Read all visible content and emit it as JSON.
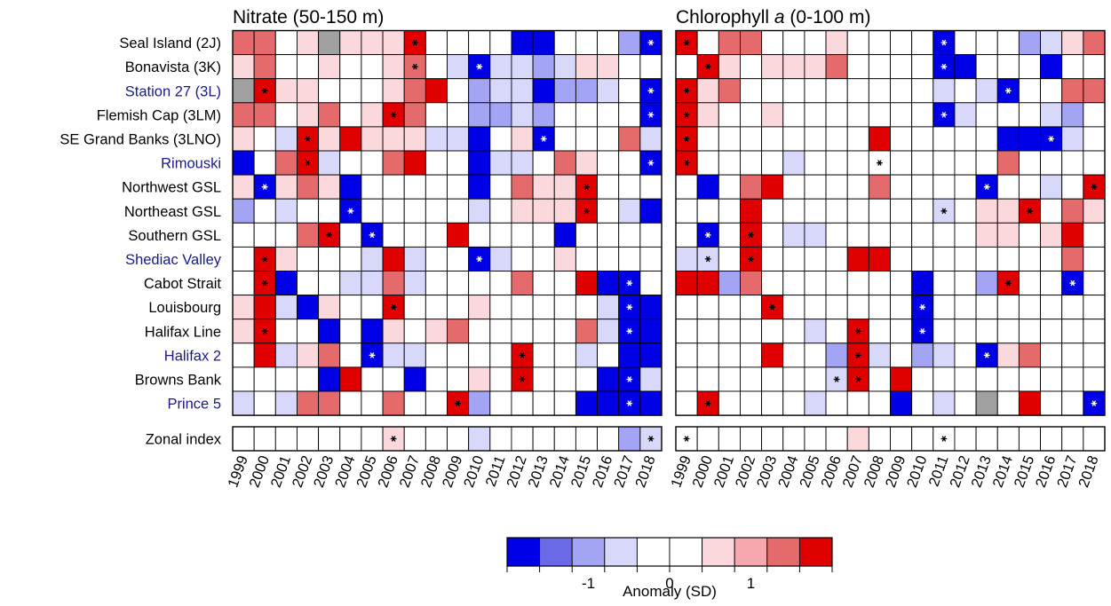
{
  "chart_data": {
    "type": "heatmap",
    "legend": {
      "title": "Anomaly (SD)",
      "tick_labels": [
        "-1",
        "0",
        "1"
      ],
      "tick_values": [
        -1,
        0,
        1
      ],
      "color_bins": [
        "#0000e6",
        "#6a6ae6",
        "#a4a4f5",
        "#d8d8fb",
        "#ffffff",
        "#ffffff",
        "#fbd8dc",
        "#f6a8ae",
        "#e46a6c",
        "#e00000"
      ],
      "range": [
        -2,
        2
      ],
      "missing_color": "#a0a0a0"
    },
    "years": [
      "1999",
      "2000",
      "2001",
      "2002",
      "2003",
      "2004",
      "2005",
      "2006",
      "2007",
      "2008",
      "2009",
      "2010",
      "2011",
      "2012",
      "2013",
      "2014",
      "2015",
      "2016",
      "2017",
      "2018"
    ],
    "rows": [
      {
        "label": "Seal Island (2J)",
        "highlight": false
      },
      {
        "label": "Bonavista (3K)",
        "highlight": false
      },
      {
        "label": "Station 27 (3L)",
        "highlight": true
      },
      {
        "label": "Flemish Cap (3LM)",
        "highlight": false
      },
      {
        "label": "SE Grand Banks (3LNO)",
        "highlight": false
      },
      {
        "label": "Rimouski",
        "highlight": true
      },
      {
        "label": "Northwest GSL",
        "highlight": false
      },
      {
        "label": "Northeast GSL",
        "highlight": false
      },
      {
        "label": "Southern GSL",
        "highlight": false
      },
      {
        "label": "Shediac Valley",
        "highlight": true
      },
      {
        "label": "Cabot Strait",
        "highlight": false
      },
      {
        "label": "Louisbourg",
        "highlight": false
      },
      {
        "label": "Halifax Line",
        "highlight": false
      },
      {
        "label": "Halifax 2",
        "highlight": true
      },
      {
        "label": "Browns Bank",
        "highlight": false
      },
      {
        "label": "Prince 5",
        "highlight": true
      }
    ],
    "index_row": {
      "label": "Zonal index"
    },
    "panels": [
      {
        "title": "Nitrate (50-150 m)",
        "values": [
          [
            1.5,
            1.2,
            0.3,
            0.5,
            null,
            0.4,
            0.6,
            0.7,
            2.0,
            0,
            -0.3,
            0,
            0,
            -2.0,
            -2.0,
            -0.3,
            -0.2,
            0,
            -1.0,
            -2.0
          ],
          [
            0.7,
            1.2,
            -0.3,
            0.3,
            0.6,
            0.3,
            0.3,
            0.5,
            1.2,
            0,
            -0.5,
            -2.0,
            -0.6,
            -0.7,
            -1.0,
            -0.6,
            0.7,
            0.5,
            0,
            -0.3
          ],
          [
            null,
            2.0,
            0.7,
            0.6,
            0,
            0.2,
            0.3,
            0.4,
            1.3,
            2.0,
            0,
            -1.0,
            -0.6,
            -0.6,
            -2.0,
            -1.0,
            -1.0,
            -0.6,
            -0.3,
            -2.0
          ],
          [
            1.3,
            1.2,
            0.3,
            0.4,
            1.2,
            0,
            0.7,
            2.0,
            1.2,
            -0.3,
            -0.3,
            -1.0,
            -1.0,
            -0.6,
            -1.0,
            -0.3,
            -0.3,
            0.3,
            -0.3,
            -2.0
          ],
          [
            0.7,
            -0.3,
            -0.6,
            2.0,
            0.7,
            2.0,
            0.7,
            0.4,
            0.5,
            -0.5,
            -0.7,
            -2.0,
            0,
            0.6,
            -2.0,
            -0.3,
            -0.3,
            -0.3,
            1.2,
            -0.7
          ],
          [
            -2.0,
            -0.3,
            1.3,
            2.0,
            -0.6,
            0.3,
            0.3,
            1.2,
            2.0,
            0,
            0.3,
            -2.0,
            -0.7,
            -0.6,
            -0.3,
            1.2,
            0.6,
            0.3,
            -0.3,
            -2.0
          ],
          [
            0.5,
            -2.0,
            0.5,
            1.2,
            0.4,
            -2.0,
            0.3,
            0.3,
            0,
            0,
            0,
            -2.0,
            -0.3,
            1.2,
            0.6,
            0.7,
            2.0,
            0.3,
            0,
            -0.3
          ],
          [
            -1.0,
            0,
            -0.7,
            0,
            0.3,
            -2.0,
            0,
            0.3,
            0,
            0,
            0,
            -0.6,
            0,
            0.7,
            0.5,
            0.5,
            2.0,
            0.3,
            -0.7,
            -2.0
          ],
          [
            -0.3,
            -0.3,
            0,
            1.2,
            2.0,
            0.3,
            -2.0,
            0.3,
            -0.3,
            0,
            2.0,
            -0.3,
            0.3,
            0,
            0,
            -2.0,
            0,
            0,
            0,
            0
          ],
          [
            0,
            2.0,
            0.4,
            0.3,
            0,
            0,
            -0.6,
            2.0,
            -0.7,
            0,
            0,
            -2.0,
            -0.7,
            0,
            0,
            0.5,
            0,
            0,
            0,
            0
          ],
          [
            0,
            2.0,
            -2.0,
            -0.3,
            0,
            -0.7,
            -0.5,
            1.2,
            -0.6,
            0,
            0.3,
            -0.3,
            0.3,
            1.2,
            0,
            0.3,
            2.0,
            -2.0,
            -2.0,
            -0.3
          ],
          [
            0.7,
            2.0,
            -0.7,
            -2.0,
            0.5,
            -0.3,
            -0.3,
            2.0,
            -0.3,
            0,
            0.3,
            0.4,
            0,
            0,
            0,
            0,
            0,
            -0.6,
            -2.0,
            -2.0
          ],
          [
            0.6,
            2.0,
            0,
            0,
            -2.0,
            0,
            -2.0,
            0.5,
            0,
            0.6,
            1.2,
            -0.3,
            0,
            0,
            0,
            -0.3,
            1.2,
            -0.6,
            -2.0,
            -2.0
          ],
          [
            0,
            2.0,
            -0.7,
            0.5,
            1.2,
            -0.3,
            -2.0,
            -0.6,
            -0.6,
            -0.3,
            -0.3,
            -0.3,
            -0.3,
            2.0,
            -0.3,
            -0.3,
            -0.5,
            -0.3,
            -2.0,
            -2.0
          ],
          [
            -0.3,
            0,
            0,
            -0.3,
            -2.0,
            2.0,
            0,
            -0.3,
            -2.0,
            0,
            0.3,
            0.5,
            0,
            2.0,
            0,
            0,
            0,
            -2.0,
            -2.0,
            -0.7
          ],
          [
            -0.7,
            -0.3,
            -0.7,
            1.2,
            1.2,
            -0.3,
            0,
            1.2,
            -0.3,
            0,
            2.0,
            -1.0,
            -0.3,
            0,
            0,
            0,
            -2.0,
            -2.0,
            -2.0,
            -2.0
          ]
        ],
        "index_values": [
          0,
          0.3,
          0,
          0,
          0,
          0,
          -0.3,
          0.6,
          0,
          0,
          0,
          -0.6,
          0,
          0.3,
          -0.3,
          0,
          0,
          -0.3,
          -1.0,
          -0.6
        ],
        "significant": [
          [
            0,
            8
          ],
          [
            0,
            19
          ],
          [
            1,
            8
          ],
          [
            1,
            11
          ],
          [
            2,
            1
          ],
          [
            2,
            19
          ],
          [
            3,
            7
          ],
          [
            3,
            19
          ],
          [
            4,
            3
          ],
          [
            4,
            14
          ],
          [
            5,
            3
          ],
          [
            5,
            19
          ],
          [
            6,
            1
          ],
          [
            6,
            16
          ],
          [
            7,
            5
          ],
          [
            7,
            16
          ],
          [
            8,
            4
          ],
          [
            8,
            6
          ],
          [
            9,
            1
          ],
          [
            9,
            11
          ],
          [
            10,
            1
          ],
          [
            10,
            18
          ],
          [
            11,
            7
          ],
          [
            11,
            18
          ],
          [
            12,
            1
          ],
          [
            12,
            18
          ],
          [
            13,
            6
          ],
          [
            13,
            13
          ],
          [
            14,
            13
          ],
          [
            14,
            18
          ],
          [
            15,
            10
          ],
          [
            15,
            18
          ]
        ],
        "index_significant": [
          7,
          19
        ]
      },
      {
        "title": "Chlorophyll a (0-100 m)",
        "title_main": "Chlorophyll ",
        "title_italic": "a",
        "title_rest": " (0-100 m)",
        "values": [
          [
            2.0,
            0.3,
            1.2,
            1.2,
            -0.3,
            0,
            0,
            0.6,
            -0.3,
            -0.3,
            0,
            0,
            -2.0,
            0,
            0,
            0,
            -1.0,
            -0.7,
            0.6,
            1.2
          ],
          [
            0.3,
            2.0,
            0.5,
            0,
            0.5,
            0.7,
            0.6,
            1.2,
            0.3,
            0,
            0,
            0,
            -2.0,
            -2.0,
            0,
            0,
            -0.3,
            -2.0,
            0.3,
            0
          ],
          [
            2.0,
            0.6,
            1.2,
            0,
            0,
            0,
            0,
            0,
            0,
            0,
            0,
            0,
            -0.7,
            0,
            -0.6,
            -2.0,
            0,
            0,
            1.2,
            1.2
          ],
          [
            2.0,
            0.5,
            0.3,
            -0.3,
            0.4,
            0.3,
            0.3,
            0.3,
            0.3,
            0,
            0,
            0,
            -2.0,
            -0.6,
            -0.3,
            0,
            0.3,
            -0.6,
            -1.0,
            0
          ],
          [
            2.0,
            -0.3,
            0,
            0,
            -0.3,
            0,
            0,
            -0.3,
            -0.3,
            2.0,
            0.3,
            0.3,
            0,
            0,
            0,
            -2.0,
            -2.0,
            -2.0,
            -0.6,
            0
          ],
          [
            2.0,
            0,
            -0.3,
            -0.3,
            0,
            -0.6,
            -0.3,
            -0.3,
            0,
            -0.3,
            0,
            0,
            0,
            0,
            0,
            1.2,
            0,
            0.3,
            0,
            0
          ],
          [
            0,
            -2.0,
            0,
            1.2,
            2.0,
            0,
            0,
            0,
            0,
            1.2,
            0,
            0,
            -0.3,
            0,
            -2.0,
            0,
            -0.3,
            -0.6,
            0,
            2.0
          ],
          [
            -0.3,
            -0.3,
            0,
            2.0,
            0,
            0,
            0,
            0,
            0,
            0,
            0,
            0,
            -0.6,
            0,
            0.6,
            0.4,
            2.0,
            0,
            1.2,
            0.6
          ],
          [
            -0.3,
            -2.0,
            -0.3,
            2.0,
            -0.3,
            -0.6,
            -0.7,
            0,
            0,
            0,
            0,
            0.3,
            0,
            0,
            0.5,
            0.4,
            0.3,
            0.5,
            2.0,
            0
          ],
          [
            -0.6,
            -0.7,
            -0.3,
            2.0,
            0,
            0,
            0,
            0,
            2.0,
            2.0,
            0,
            0,
            0,
            0,
            0,
            0,
            0,
            0,
            1.2,
            0
          ],
          [
            2.0,
            2.0,
            -1.0,
            1.2,
            0,
            0,
            0,
            -0.3,
            0,
            -0.3,
            0,
            -2.0,
            0,
            0,
            -1.0,
            2.0,
            0,
            0,
            -2.0,
            0
          ],
          [
            0,
            0,
            0,
            0,
            2.0,
            0,
            0,
            0.3,
            0,
            0,
            0,
            -2.0,
            0.3,
            0,
            0,
            0,
            0,
            0,
            0,
            0
          ],
          [
            0,
            0,
            0,
            0,
            0,
            -0.3,
            -0.6,
            -0.3,
            2.0,
            -0.3,
            0,
            -2.0,
            -0.3,
            0,
            0,
            -0.3,
            0,
            0,
            0,
            0
          ],
          [
            0,
            0,
            0,
            0,
            2.0,
            0,
            0,
            -1.0,
            2.0,
            -0.7,
            -0.3,
            -1.0,
            -0.7,
            0,
            -2.0,
            0.6,
            1.2,
            0,
            -0.3,
            0
          ],
          [
            -0.3,
            -0.3,
            0,
            0,
            -0.3,
            0,
            -0.3,
            -0.6,
            2.0,
            -0.3,
            2.0,
            0,
            0,
            -0.3,
            0,
            0,
            -0.3,
            0,
            0,
            -0.3
          ],
          [
            0.3,
            2.0,
            -0.3,
            -0.3,
            0,
            0,
            -0.7,
            0,
            -0.3,
            0,
            -2.0,
            0,
            -0.6,
            0.3,
            null,
            0,
            2.0,
            0,
            0,
            -2.0
          ]
        ],
        "index_values": [
          0.3,
          0,
          0,
          0.3,
          0,
          0,
          0,
          0,
          0.6,
          0,
          0,
          0,
          -0.3,
          0,
          0,
          0,
          0,
          -0.3,
          0,
          0
        ],
        "significant": [
          [
            0,
            0
          ],
          [
            0,
            12
          ],
          [
            1,
            1
          ],
          [
            1,
            12
          ],
          [
            2,
            0
          ],
          [
            2,
            15
          ],
          [
            3,
            0
          ],
          [
            3,
            12
          ],
          [
            4,
            0
          ],
          [
            4,
            17
          ],
          [
            5,
            0
          ],
          [
            5,
            9
          ],
          [
            6,
            14
          ],
          [
            6,
            19
          ],
          [
            7,
            12
          ],
          [
            7,
            16
          ],
          [
            8,
            1
          ],
          [
            8,
            3
          ],
          [
            9,
            1
          ],
          [
            9,
            3
          ],
          [
            10,
            15
          ],
          [
            10,
            18
          ],
          [
            11,
            4
          ],
          [
            11,
            11
          ],
          [
            12,
            8
          ],
          [
            12,
            11
          ],
          [
            13,
            8
          ],
          [
            13,
            14
          ],
          [
            14,
            7
          ],
          [
            14,
            8
          ],
          [
            15,
            1
          ],
          [
            15,
            19
          ]
        ],
        "index_significant": [
          0,
          12
        ]
      }
    ]
  }
}
